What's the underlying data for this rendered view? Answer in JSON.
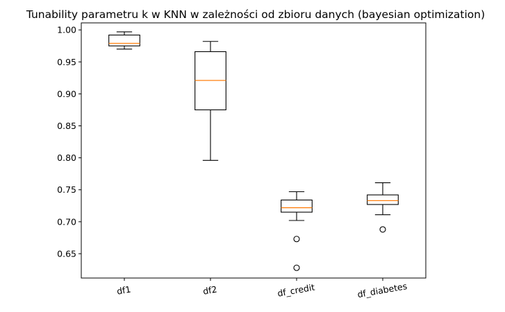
{
  "chart_data": {
    "type": "box",
    "title": "Tunability parametru k w KNN w zależności od zbioru danych (bayesian optimization)",
    "xlabel": "",
    "ylabel": "",
    "ylim": [
      0.612,
      1.011
    ],
    "yticks": [
      0.65,
      0.7,
      0.75,
      0.8,
      0.85,
      0.9,
      0.95,
      1.0
    ],
    "ytick_labels": [
      "0.65",
      "0.70",
      "0.75",
      "0.80",
      "0.85",
      "0.90",
      "0.95",
      "1.00"
    ],
    "xtick_rotation_deg": -10,
    "categories": [
      "df1",
      "df2",
      "df_credit",
      "df_diabetes"
    ],
    "boxes": [
      {
        "label": "df1",
        "whisker_low": 0.97,
        "q1": 0.975,
        "median": 0.979,
        "q3": 0.992,
        "whisker_high": 0.997,
        "fliers": []
      },
      {
        "label": "df2",
        "whisker_low": 0.796,
        "q1": 0.875,
        "median": 0.921,
        "q3": 0.966,
        "whisker_high": 0.982,
        "fliers": []
      },
      {
        "label": "df_credit",
        "whisker_low": 0.702,
        "q1": 0.715,
        "median": 0.722,
        "q3": 0.734,
        "whisker_high": 0.747,
        "fliers": [
          0.673,
          0.628
        ]
      },
      {
        "label": "df_diabetes",
        "whisker_low": 0.711,
        "q1": 0.727,
        "median": 0.733,
        "q3": 0.742,
        "whisker_high": 0.761,
        "fliers": [
          0.688
        ]
      }
    ],
    "colors": {
      "box": "#000000",
      "median": "#ff7f0e",
      "flier": "#000000"
    },
    "grid": false,
    "legend": "none"
  }
}
